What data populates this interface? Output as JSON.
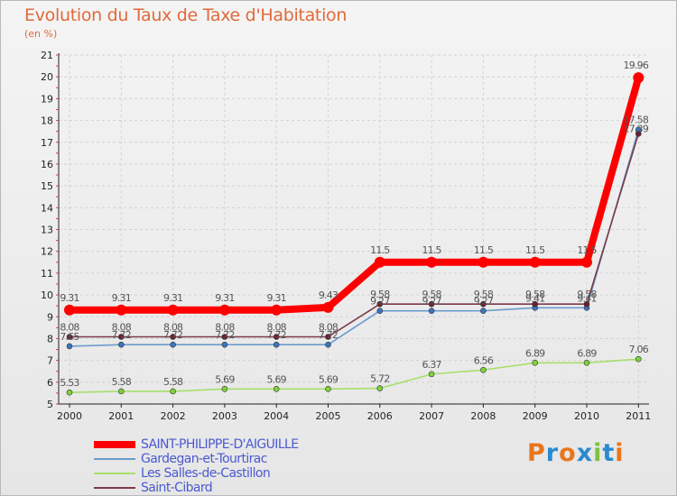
{
  "chart_data": {
    "type": "line",
    "title": "Evolution du Taux de Taxe d'Habitation",
    "subtitle": "(en %)",
    "xlabel": "",
    "ylabel": "",
    "ylim": [
      5,
      21
    ],
    "yticks": [
      "5",
      "6",
      "7",
      "8",
      "9",
      "10",
      "11",
      "12",
      "13",
      "14",
      "15",
      "16",
      "17",
      "18",
      "19",
      "20",
      "21"
    ],
    "categories": [
      "2000",
      "2001",
      "2002",
      "2003",
      "2004",
      "2005",
      "2006",
      "2007",
      "2008",
      "2009",
      "2010",
      "2011"
    ],
    "series": [
      {
        "name": "Les Salles-de-Castillon",
        "color": "#a6df6a",
        "marker": "#7ed23a",
        "values": [
          5.53,
          5.58,
          5.58,
          5.69,
          5.69,
          5.69,
          5.72,
          6.37,
          6.56,
          6.89,
          6.89,
          7.06
        ],
        "labels": [
          "5.53",
          "5.58",
          "5.58",
          "5.69",
          "5.69",
          "5.69",
          "5.72",
          "6.37",
          "6.56",
          "6.89",
          "6.89",
          "7.06"
        ]
      },
      {
        "name": "Gardegan-et-Tourtirac",
        "color": "#6c9ccc",
        "marker": "#3d74bf",
        "values": [
          7.65,
          7.72,
          7.72,
          7.72,
          7.72,
          7.72,
          9.27,
          9.27,
          9.27,
          9.41,
          9.41,
          17.58
        ],
        "labels": [
          "7.65",
          "7.72",
          "7.72",
          "7.72",
          "7.72",
          "7.72",
          "9.27",
          "9.27",
          "9.27",
          "9.41",
          "9.41",
          "17.58"
        ]
      },
      {
        "name": "Saint-Cibard",
        "color": "#7a3a48",
        "marker": "#6a2030",
        "values": [
          8.08,
          8.08,
          8.08,
          8.08,
          8.08,
          8.08,
          9.58,
          9.58,
          9.58,
          9.58,
          9.58,
          17.39
        ],
        "labels": [
          "8.08",
          "8.08",
          "8.08",
          "8.08",
          "8.08",
          "8.08",
          "9.58",
          "9.58",
          "9.58",
          "9.58",
          "9.58",
          "17.39"
        ]
      },
      {
        "name": "SAINT-PHILIPPE-D'AIGUILLE",
        "color": "#ff0000",
        "marker": "#ff0000",
        "values": [
          9.31,
          9.31,
          9.31,
          9.31,
          9.31,
          9.43,
          11.5,
          11.5,
          11.5,
          11.5,
          11.5,
          19.96
        ],
        "labels": [
          "9.31",
          "9.31",
          "9.31",
          "9.31",
          "9.31",
          "9.43",
          "11.5",
          "11.5",
          "11.5",
          "11.5",
          "11.5",
          "19.96"
        ]
      }
    ]
  },
  "legend": {
    "items": [
      {
        "label": "SAINT-PHILIPPE-D'AIGUILLE",
        "color": "#ff0000"
      },
      {
        "label": "Gardegan-et-Tourtirac",
        "color": "#6c9ccc"
      },
      {
        "label": "Les Salles-de-Castillon",
        "color": "#a6df6a"
      },
      {
        "label": "Saint-Cibard",
        "color": "#7a3a48"
      }
    ]
  },
  "branding": {
    "logo_text": "Proxiti",
    "logo_colors": [
      "#e8761c",
      "#2a8ad0",
      "#e8761c",
      "#2a8ad0",
      "#7cc241",
      "#2a8ad0",
      "#e8761c"
    ]
  }
}
